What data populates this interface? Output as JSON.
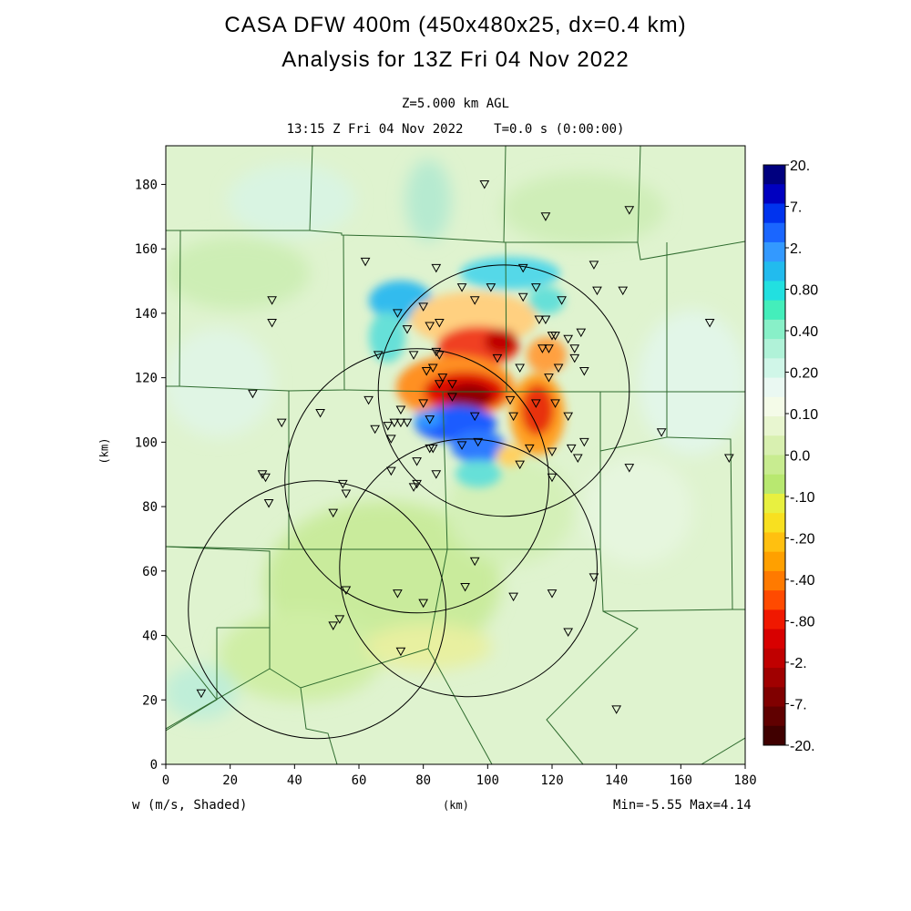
{
  "header": {
    "title_line1": "CASA DFW 400m (450x480x25, dx=0.4 km)",
    "title_line2": "Analysis for 13Z Fri 04 Nov 2022",
    "level": "Z=5.000 km AGL",
    "valid_time": "13:15 Z Fri 04 Nov 2022    T=0.0 s (0:00:00)"
  },
  "footer": {
    "variable": "w (m/s, Shaded)",
    "x_unit": "(km)",
    "minmax": "Min=-5.55 Max=4.14"
  },
  "colors": {
    "background_field": "#d9f2c8",
    "county_lines": "#2e6b2e",
    "radar_rings": "#000000"
  },
  "chart_data": {
    "type": "heatmap",
    "xlabel": "(km)",
    "ylabel": "(km)",
    "xlim": [
      0,
      180
    ],
    "ylim": [
      0,
      192
    ],
    "xticks": [
      0,
      20,
      40,
      60,
      80,
      100,
      120,
      140,
      160,
      180
    ],
    "yticks": [
      0,
      20,
      40,
      60,
      80,
      100,
      120,
      140,
      160,
      180
    ],
    "field_min": -5.55,
    "field_max": 4.14,
    "colorbar": {
      "labels": [
        "20.",
        "7.",
        "2.",
        "0.80",
        "0.40",
        "0.20",
        "0.10",
        "0.0",
        "-.10",
        "-.20",
        "-.40",
        "-.80",
        "-2.",
        "-7.",
        "-20."
      ],
      "colors": [
        "#00007f",
        "#0000c0",
        "#0033ee",
        "#1a66ff",
        "#3399ff",
        "#22bbee",
        "#22e0e0",
        "#44eebb",
        "#88f0c8",
        "#b0f2d8",
        "#d0f6e8",
        "#eaf8f2",
        "#f4fbe8",
        "#e8f6d0",
        "#d8f0b0",
        "#c8ec90",
        "#b8e870",
        "#e8f040",
        "#f8e020",
        "#ffc010",
        "#ffa000",
        "#ff7a00",
        "#ff4a00",
        "#f01800",
        "#d80000",
        "#c00000",
        "#a00000",
        "#800000",
        "#600000",
        "#400000"
      ]
    },
    "radar_rings": [
      {
        "cx": 105,
        "cy": 116,
        "r": 39
      },
      {
        "cx": 78,
        "cy": 88,
        "r": 41
      },
      {
        "cx": 47,
        "cy": 48,
        "r": 40
      },
      {
        "cx": 94,
        "cy": 61,
        "r": 40
      }
    ],
    "stations": [
      [
        99,
        180
      ],
      [
        118,
        170
      ],
      [
        144,
        172
      ],
      [
        62,
        156
      ],
      [
        84,
        154
      ],
      [
        111,
        154
      ],
      [
        133,
        155
      ],
      [
        33,
        144
      ],
      [
        33,
        137
      ],
      [
        92,
        148
      ],
      [
        101,
        148
      ],
      [
        115,
        148
      ],
      [
        123,
        144
      ],
      [
        134,
        147
      ],
      [
        142,
        147
      ],
      [
        80,
        142
      ],
      [
        72,
        140
      ],
      [
        96,
        144
      ],
      [
        111,
        145
      ],
      [
        118,
        138
      ],
      [
        116,
        138
      ],
      [
        121,
        133
      ],
      [
        120,
        133
      ],
      [
        125,
        132
      ],
      [
        129,
        134
      ],
      [
        127,
        129
      ],
      [
        75,
        135
      ],
      [
        82,
        136
      ],
      [
        85,
        137
      ],
      [
        169,
        137
      ],
      [
        66,
        127
      ],
      [
        77,
        127
      ],
      [
        84,
        128
      ],
      [
        85,
        127
      ],
      [
        127,
        126
      ],
      [
        103,
        126
      ],
      [
        117,
        129
      ],
      [
        119,
        129
      ],
      [
        81,
        122
      ],
      [
        83,
        123
      ],
      [
        110,
        123
      ],
      [
        122,
        123
      ],
      [
        130,
        122
      ],
      [
        86,
        120
      ],
      [
        85,
        118
      ],
      [
        89,
        118
      ],
      [
        119,
        120
      ],
      [
        80,
        112
      ],
      [
        89,
        114
      ],
      [
        107,
        113
      ],
      [
        63,
        113
      ],
      [
        115,
        112
      ],
      [
        121,
        112
      ],
      [
        27,
        115
      ],
      [
        82,
        107
      ],
      [
        96,
        108
      ],
      [
        108,
        108
      ],
      [
        125,
        108
      ],
      [
        73,
        110
      ],
      [
        69,
        105
      ],
      [
        73,
        106
      ],
      [
        71,
        106
      ],
      [
        75,
        106
      ],
      [
        36,
        106
      ],
      [
        48,
        109
      ],
      [
        65,
        104
      ],
      [
        70,
        101
      ],
      [
        78,
        94
      ],
      [
        83,
        98
      ],
      [
        92,
        99
      ],
      [
        97,
        100
      ],
      [
        82,
        98
      ],
      [
        113,
        98
      ],
      [
        120,
        97
      ],
      [
        126,
        98
      ],
      [
        130,
        100
      ],
      [
        154,
        103
      ],
      [
        175,
        95
      ],
      [
        144,
        92
      ],
      [
        110,
        93
      ],
      [
        128,
        95
      ],
      [
        120,
        89
      ],
      [
        70,
        91
      ],
      [
        30,
        90
      ],
      [
        31,
        89
      ],
      [
        78,
        87
      ],
      [
        77,
        86
      ],
      [
        55,
        87
      ],
      [
        84,
        90
      ],
      [
        56,
        84
      ],
      [
        32,
        81
      ],
      [
        52,
        78
      ],
      [
        96,
        63
      ],
      [
        133,
        58
      ],
      [
        120,
        53
      ],
      [
        108,
        52
      ],
      [
        56,
        54
      ],
      [
        72,
        53
      ],
      [
        80,
        50
      ],
      [
        93,
        55
      ],
      [
        52,
        43
      ],
      [
        54,
        45
      ],
      [
        125,
        41
      ],
      [
        73,
        35
      ],
      [
        11,
        22
      ],
      [
        140,
        17
      ]
    ]
  }
}
